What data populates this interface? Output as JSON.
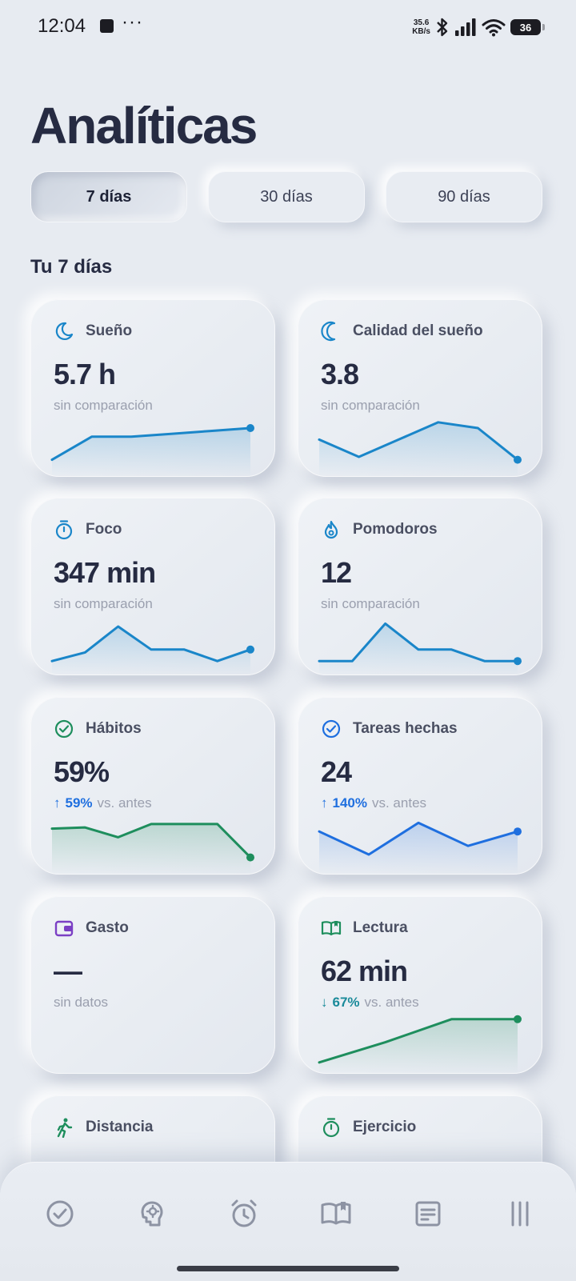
{
  "status_bar": {
    "time": "12:04",
    "dots": "···",
    "net_speed_value": "35.6",
    "net_speed_unit": "KB/s",
    "battery": "36"
  },
  "title": "Analíticas",
  "tabs": [
    {
      "label": "7 días"
    },
    {
      "label": "30 días"
    },
    {
      "label": "90 días"
    }
  ],
  "section_title": "Tu 7 días",
  "colors": {
    "blue": "#1a86c9",
    "green": "#1e8e5d",
    "accent_blue": "#1f6fdf",
    "purple": "#7b3fc4"
  },
  "cards": [
    {
      "label": "Sueño",
      "icon": "moon-icon",
      "value": "5.7 h",
      "sub": "sin comparación",
      "spark": [
        0.2,
        0.6,
        0.6,
        0.65,
        0.7,
        0.75
      ],
      "color": "#1a86c9"
    },
    {
      "label": "Calidad del sueño",
      "icon": "moon-outline-icon",
      "value": "3.8",
      "sub": "sin comparación",
      "spark": [
        0.55,
        0.25,
        0.55,
        0.85,
        0.75,
        0.2
      ],
      "color": "#1a86c9"
    },
    {
      "label": "Foco",
      "icon": "stopwatch-icon",
      "value": "347 min",
      "sub": "sin comparación",
      "spark": [
        0.15,
        0.3,
        0.75,
        0.35,
        0.35,
        0.15,
        0.35
      ],
      "color": "#1a86c9"
    },
    {
      "label": "Pomodoros",
      "icon": "flame-icon",
      "value": "12",
      "sub": "sin comparación",
      "spark": [
        0.15,
        0.15,
        0.8,
        0.35,
        0.35,
        0.15,
        0.15
      ],
      "color": "#1a86c9"
    },
    {
      "label": "Hábitos",
      "icon": "check-circle-icon",
      "value": "59%",
      "delta_arrow": "↑",
      "delta_pct": "59%",
      "delta_text": "vs. antes",
      "spark": [
        0.7,
        0.72,
        0.55,
        0.78,
        0.78,
        0.78,
        0.2
      ],
      "color": "#1e8e5d"
    },
    {
      "label": "Tareas hechas",
      "icon": "check-circle-icon",
      "value": "24",
      "delta_arrow": "↑",
      "delta_pct": "140%",
      "delta_text": "vs. antes",
      "spark": [
        0.65,
        0.25,
        0.8,
        0.4,
        0.65
      ],
      "color": "#1f6fdf"
    },
    {
      "label": "Gasto",
      "icon": "wallet-icon",
      "value": "—",
      "sub": "sin datos",
      "spark": [],
      "color": "#7b3fc4"
    },
    {
      "label": "Lectura",
      "icon": "book-open-icon",
      "value": "62 min",
      "delta_arrow": "↓",
      "delta_pct": "67%",
      "delta_text": "vs. antes",
      "spark": [
        0.1,
        0.45,
        0.85,
        0.85
      ],
      "color": "#1e8e5d"
    },
    {
      "label": "Distancia",
      "icon": "walking-icon",
      "value": "",
      "sub": "",
      "spark": [],
      "color": "#1e8e5d"
    },
    {
      "label": "Ejercicio",
      "icon": "stopwatch-icon",
      "value": "",
      "sub": "",
      "spark": [],
      "color": "#1e8e5d"
    }
  ],
  "bottom_nav": [
    {
      "icon": "check-circle-icon"
    },
    {
      "icon": "brain-icon"
    },
    {
      "icon": "alarm-clock-icon"
    },
    {
      "icon": "book-open-icon"
    },
    {
      "icon": "notes-icon"
    },
    {
      "icon": "menu-lines-icon"
    }
  ]
}
